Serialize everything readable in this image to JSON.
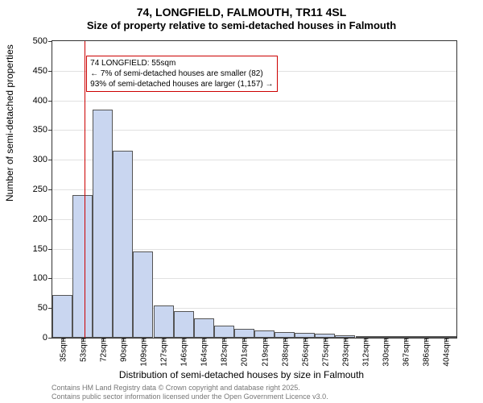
{
  "title_line1": "74, LONGFIELD, FALMOUTH, TR11 4SL",
  "title_line2": "Size of property relative to semi-detached houses in Falmouth",
  "ylabel": "Number of semi-detached properties",
  "xlabel": "Distribution of semi-detached houses by size in Falmouth",
  "attribution_line1": "Contains HM Land Registry data © Crown copyright and database right 2025.",
  "attribution_line2": "Contains public sector information licensed under the Open Government Licence v3.0.",
  "chart": {
    "type": "histogram",
    "ylim": [
      0,
      500
    ],
    "ytick_step": 50,
    "yticks": [
      0,
      50,
      100,
      150,
      200,
      250,
      300,
      350,
      400,
      450,
      500
    ],
    "xticks": [
      "35sqm",
      "53sqm",
      "72sqm",
      "90sqm",
      "109sqm",
      "127sqm",
      "146sqm",
      "164sqm",
      "182sqm",
      "201sqm",
      "219sqm",
      "238sqm",
      "256sqm",
      "275sqm",
      "293sqm",
      "312sqm",
      "330sqm",
      "367sqm",
      "386sqm",
      "404sqm"
    ],
    "n_bars": 20,
    "values": [
      72,
      240,
      385,
      315,
      145,
      55,
      45,
      33,
      20,
      15,
      12,
      10,
      8,
      7,
      4,
      2,
      1,
      1,
      1,
      1
    ],
    "bar_fill": "#c9d6f0",
    "bar_border": "#555555",
    "grid_color": "#888888",
    "background_color": "#ffffff",
    "reference_line_color": "#cc0000",
    "reference_bar_index": 1,
    "annotation": {
      "line1": "74 LONGFIELD: 55sqm",
      "line2": "← 7% of semi-detached houses are smaller (82)",
      "line3": "93% of semi-detached houses are larger (1,157) →",
      "border_color": "#cc0000",
      "background": "#ffffff",
      "fontsize": 10
    }
  }
}
